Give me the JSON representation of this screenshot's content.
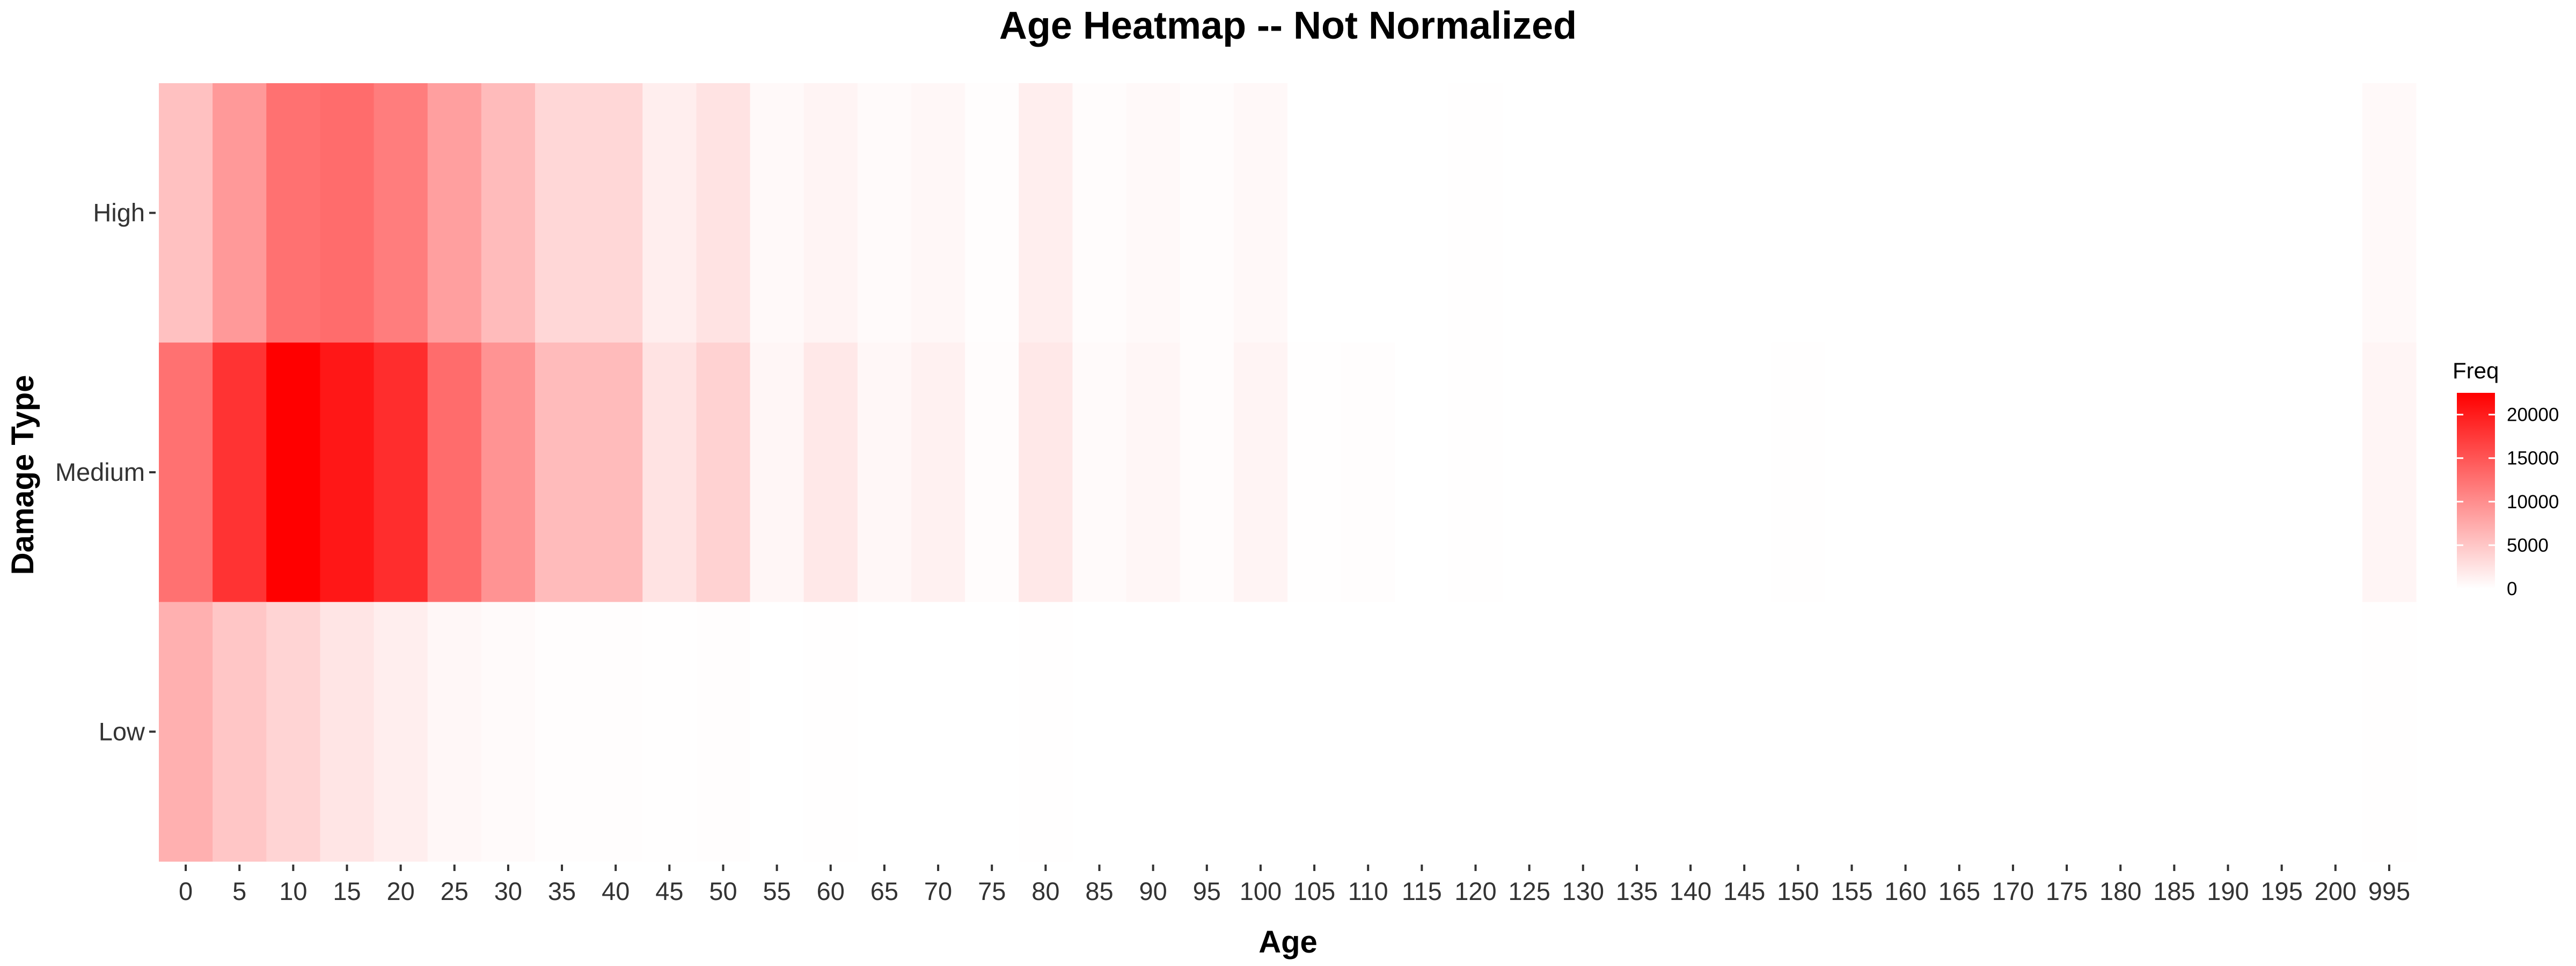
{
  "chart_data": {
    "type": "heatmap",
    "title": "Age Heatmap -- Not Normalized",
    "xlabel": "Age",
    "ylabel": "Damage Type",
    "x_categories": [
      "0",
      "5",
      "10",
      "15",
      "20",
      "25",
      "30",
      "35",
      "40",
      "45",
      "50",
      "55",
      "60",
      "65",
      "70",
      "75",
      "80",
      "85",
      "90",
      "95",
      "100",
      "105",
      "110",
      "115",
      "120",
      "125",
      "130",
      "135",
      "140",
      "145",
      "150",
      "155",
      "160",
      "165",
      "170",
      "175",
      "180",
      "185",
      "190",
      "195",
      "200",
      "995"
    ],
    "y_categories": [
      "High",
      "Medium",
      "Low"
    ],
    "values": {
      "High": [
        5500,
        9000,
        12500,
        13000,
        11500,
        8500,
        6000,
        3500,
        3500,
        1500,
        2500,
        500,
        1000,
        400,
        700,
        150,
        1500,
        300,
        500,
        250,
        600,
        0,
        0,
        0,
        50,
        0,
        0,
        0,
        0,
        0,
        0,
        0,
        0,
        0,
        0,
        0,
        0,
        0,
        0,
        0,
        0,
        500
      ],
      "Medium": [
        12500,
        18000,
        22500,
        20500,
        18500,
        13000,
        9500,
        6000,
        6000,
        2500,
        4000,
        800,
        2000,
        700,
        1200,
        250,
        2000,
        400,
        800,
        300,
        1000,
        100,
        150,
        0,
        50,
        0,
        0,
        0,
        0,
        0,
        50,
        0,
        0,
        0,
        0,
        0,
        0,
        0,
        0,
        0,
        0,
        900
      ],
      "Low": [
        7000,
        5000,
        3800,
        2300,
        1500,
        700,
        400,
        200,
        200,
        100,
        150,
        30,
        80,
        20,
        30,
        5,
        60,
        10,
        20,
        5,
        20,
        0,
        0,
        0,
        0,
        0,
        0,
        0,
        0,
        0,
        0,
        0,
        0,
        0,
        0,
        0,
        0,
        0,
        0,
        0,
        0,
        80
      ]
    },
    "color_low": "#ffffff",
    "color_high": "#ff0000",
    "value_range": [
      0,
      22500
    ],
    "legend": {
      "title": "Freq",
      "ticks": [
        20000,
        15000,
        10000,
        5000,
        0
      ],
      "tick_labels": [
        "20000",
        "15000",
        "10000",
        "5000",
        "0"
      ],
      "position": "right"
    },
    "grid": false
  }
}
